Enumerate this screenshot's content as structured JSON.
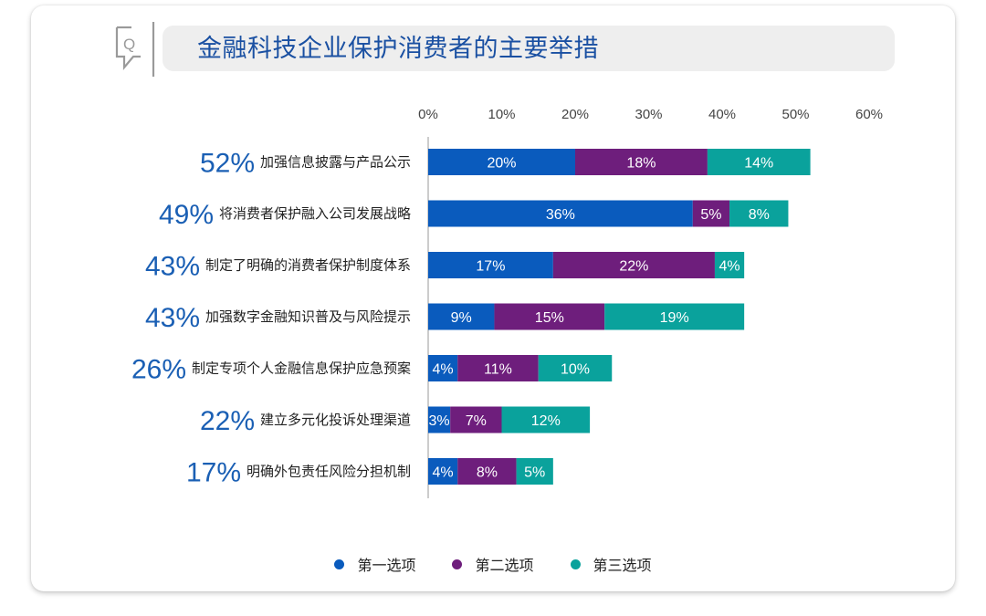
{
  "title": "金融科技企业保护消费者的主要举措",
  "icon": "question-chat-icon",
  "colors": {
    "series1": "#0a5bbd",
    "series2": "#6e1e7c",
    "series3": "#0aa29c",
    "title": "#1a50a2",
    "total": "#1a5fb4"
  },
  "chart_data": {
    "type": "bar",
    "orientation": "horizontal",
    "stacked": true,
    "xlim": [
      0,
      60
    ],
    "x_ticks": [
      "0%",
      "10%",
      "20%",
      "30%",
      "40%",
      "50%",
      "60%"
    ],
    "categories": [
      "加强信息披露与产品公示",
      "将消费者保护融入公司发展战略",
      "制定了明确的消费者保护制度体系",
      "加强数字金融知识普及与风险提示",
      "制定专项个人金融信息保护应急预案",
      "建立多元化投诉处理渠道",
      "明确外包责任风险分担机制"
    ],
    "totals": [
      "52%",
      "49%",
      "43%",
      "43%",
      "26%",
      "22%",
      "17%"
    ],
    "series": [
      {
        "name": "第一选项",
        "values": [
          20,
          36,
          17,
          9,
          4,
          3,
          4
        ]
      },
      {
        "name": "第二选项",
        "values": [
          18,
          5,
          22,
          15,
          11,
          7,
          8
        ]
      },
      {
        "name": "第三选项",
        "values": [
          14,
          8,
          4,
          19,
          10,
          12,
          5
        ]
      }
    ],
    "legend_position": "bottom",
    "grid": false
  }
}
